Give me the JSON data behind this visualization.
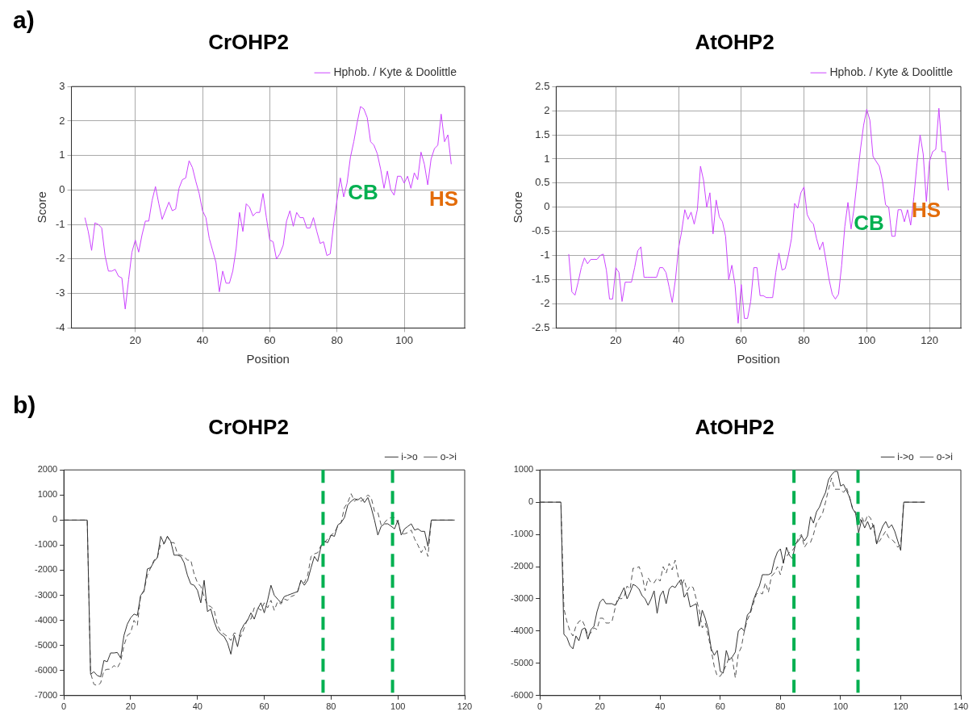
{
  "chart_data": [
    {
      "type": "line",
      "title": "CrOHP2",
      "xlabel": "Position",
      "ylabel": "Score",
      "xlim": [
        1,
        118
      ],
      "xticks": [
        20,
        40,
        60,
        80,
        100
      ],
      "ylim": [
        -4,
        3
      ],
      "yticks": [
        -4,
        -3,
        -2,
        -1,
        0,
        1,
        2,
        3
      ],
      "grid": true,
      "legend": "top right",
      "marker": "none",
      "line_style": "solid",
      "annotations": [
        "a)",
        "CB",
        "HS"
      ],
      "x": [
        5,
        6,
        7,
        8,
        9,
        10,
        11,
        12,
        13,
        14,
        15,
        16,
        17,
        18,
        19,
        20,
        21,
        22,
        23,
        24,
        25,
        26,
        27,
        28,
        29,
        30,
        31,
        32,
        33,
        34,
        35,
        36,
        37,
        38,
        39,
        40,
        41,
        42,
        43,
        44,
        45,
        46,
        47,
        48,
        49,
        50,
        51,
        52,
        53,
        54,
        55,
        56,
        57,
        58,
        59,
        60,
        61,
        62,
        63,
        64,
        65,
        66,
        67,
        68,
        69,
        70,
        71,
        72,
        73,
        74,
        75,
        76,
        77,
        78,
        79,
        80,
        81,
        82,
        83,
        84,
        85,
        86,
        87,
        88,
        89,
        90,
        91,
        92,
        93,
        94,
        95,
        96,
        97,
        98,
        99,
        100,
        101,
        102,
        103,
        104,
        105,
        106,
        107,
        108,
        109,
        110,
        111,
        112,
        113,
        114
      ],
      "series": [
        {
          "name": "Hphob. / Kyte & Doolittle",
          "color": "#cc44ff",
          "values": [
            -0.8,
            -1.2,
            -1.75,
            -0.95,
            -1.0,
            -1.1,
            -1.9,
            -2.35,
            -2.35,
            -2.3,
            -2.5,
            -2.55,
            -3.45,
            -2.6,
            -1.8,
            -1.45,
            -1.8,
            -1.3,
            -0.9,
            -0.9,
            -0.3,
            0.1,
            -0.4,
            -0.85,
            -0.6,
            -0.35,
            -0.6,
            -0.55,
            0.05,
            0.3,
            0.35,
            0.85,
            0.65,
            0.25,
            -0.1,
            -0.6,
            -0.8,
            -1.4,
            -1.75,
            -2.1,
            -2.95,
            -2.35,
            -2.7,
            -2.7,
            -2.35,
            -1.7,
            -0.65,
            -1.2,
            -0.4,
            -0.5,
            -0.75,
            -0.65,
            -0.65,
            -0.1,
            -0.8,
            -1.45,
            -1.5,
            -2.0,
            -1.85,
            -1.6,
            -0.9,
            -0.6,
            -1.05,
            -0.65,
            -0.8,
            -0.8,
            -1.1,
            -1.1,
            -0.8,
            -1.2,
            -1.55,
            -1.5,
            -1.9,
            -1.85,
            -1.0,
            -0.3,
            0.35,
            -0.2,
            0.2,
            0.95,
            1.4,
            1.95,
            2.42,
            2.35,
            2.1,
            1.4,
            1.3,
            1.05,
            0.6,
            0.05,
            0.55,
            0.0,
            -0.15,
            0.4,
            0.4,
            0.2,
            0.4,
            0.05,
            0.5,
            0.3,
            1.1,
            0.75,
            0.15,
            0.9,
            1.2,
            1.3,
            2.2,
            1.4,
            1.6,
            0.75
          ]
        }
      ]
    },
    {
      "type": "line",
      "title": "AtOHP2",
      "xlabel": "Position",
      "ylabel": "Score",
      "xlim": [
        1,
        130
      ],
      "xticks": [
        20,
        40,
        60,
        80,
        100,
        120
      ],
      "ylim": [
        -2.5,
        2.5
      ],
      "yticks": [
        -2.5,
        -2,
        -1.5,
        -1,
        -0.5,
        0,
        0.5,
        1,
        1.5,
        2,
        2.5
      ],
      "grid": true,
      "legend": "top right",
      "marker": "none",
      "line_style": "solid",
      "annotations": [
        "CB",
        "HS"
      ],
      "x": [
        5,
        6,
        7,
        8,
        9,
        10,
        11,
        12,
        13,
        14,
        15,
        16,
        17,
        18,
        19,
        20,
        21,
        22,
        23,
        24,
        25,
        26,
        27,
        28,
        29,
        30,
        31,
        32,
        33,
        34,
        35,
        36,
        37,
        38,
        39,
        40,
        41,
        42,
        43,
        44,
        45,
        46,
        47,
        48,
        49,
        50,
        51,
        52,
        53,
        54,
        55,
        56,
        57,
        58,
        59,
        60,
        61,
        62,
        63,
        64,
        65,
        66,
        67,
        68,
        69,
        70,
        71,
        72,
        73,
        74,
        75,
        76,
        77,
        78,
        79,
        80,
        81,
        82,
        83,
        84,
        85,
        86,
        87,
        88,
        89,
        90,
        91,
        92,
        93,
        94,
        95,
        96,
        97,
        98,
        99,
        100,
        101,
        102,
        103,
        104,
        105,
        106,
        107,
        108,
        109,
        110,
        111,
        112,
        113,
        114,
        115,
        116,
        117,
        118,
        119,
        120,
        121,
        122,
        123,
        124,
        125,
        126
      ],
      "series": [
        {
          "name": "Hphob. / Kyte & Doolittle",
          "color": "#cc44ff",
          "values": [
            -0.97,
            -1.75,
            -1.82,
            -1.55,
            -1.25,
            -1.05,
            -1.17,
            -1.08,
            -1.08,
            -1.08,
            -1.0,
            -0.97,
            -1.3,
            -1.9,
            -1.9,
            -1.25,
            -1.35,
            -1.95,
            -1.55,
            -1.55,
            -1.55,
            -1.25,
            -0.9,
            -0.82,
            -1.45,
            -1.45,
            -1.45,
            -1.45,
            -1.45,
            -1.25,
            -1.25,
            -1.35,
            -1.65,
            -1.97,
            -1.5,
            -0.85,
            -0.5,
            -0.05,
            -0.25,
            -0.1,
            -0.35,
            -0.05,
            0.85,
            0.55,
            0.0,
            0.3,
            -0.55,
            0.15,
            -0.2,
            -0.3,
            -0.6,
            -1.5,
            -1.2,
            -1.6,
            -2.4,
            -1.6,
            -2.3,
            -2.3,
            -1.95,
            -1.25,
            -1.25,
            -1.83,
            -1.83,
            -1.87,
            -1.87,
            -1.87,
            -1.35,
            -0.95,
            -1.3,
            -1.27,
            -1.0,
            -0.65,
            0.08,
            -0.02,
            0.3,
            0.42,
            -0.15,
            -0.28,
            -0.35,
            -0.65,
            -0.88,
            -0.72,
            -1.1,
            -1.5,
            -1.8,
            -1.9,
            -1.8,
            -1.2,
            -0.4,
            0.1,
            -0.45,
            0.0,
            0.6,
            1.2,
            1.7,
            2.03,
            1.8,
            1.05,
            0.95,
            0.85,
            0.55,
            0.05,
            0.0,
            -0.6,
            -0.6,
            -0.05,
            -0.05,
            -0.3,
            -0.05,
            -0.37,
            0.2,
            0.9,
            1.5,
            1.1,
            0.12,
            0.95,
            1.15,
            1.2,
            2.05,
            1.15,
            1.15,
            0.35
          ]
        }
      ]
    },
    {
      "type": "line",
      "title": "CrOHP2",
      "xlim": [
        0,
        120
      ],
      "xticks": [
        0,
        20,
        40,
        60,
        80,
        100,
        120
      ],
      "ylim": [
        -7000,
        2000
      ],
      "yticks": [
        -7000,
        -6000,
        -5000,
        -4000,
        -3000,
        -2000,
        -1000,
        0,
        1000,
        2000
      ],
      "legend": "top right",
      "marker": "none",
      "annotations": [
        "b)"
      ],
      "ref_lines": [
        {
          "axis": "x",
          "value": 77.6,
          "color": "#00b050",
          "line_style": "dashed"
        },
        {
          "axis": "x",
          "value": 98.4,
          "color": "#00b050",
          "line_style": "dashed"
        }
      ],
      "x": [
        0,
        7,
        8,
        9,
        10,
        11,
        12,
        13,
        14,
        15,
        16,
        17,
        18,
        19,
        20,
        21,
        22,
        23,
        24,
        25,
        26,
        27,
        28,
        29,
        30,
        31,
        32,
        33,
        34,
        35,
        36,
        37,
        38,
        39,
        40,
        41,
        42,
        43,
        44,
        45,
        46,
        47,
        48,
        49,
        50,
        51,
        52,
        53,
        54,
        55,
        56,
        57,
        58,
        59,
        60,
        61,
        62,
        63,
        64,
        65,
        66,
        67,
        68,
        69,
        70,
        71,
        72,
        73,
        74,
        75,
        76,
        77,
        78,
        79,
        80,
        81,
        82,
        83,
        84,
        85,
        86,
        87,
        88,
        89,
        90,
        91,
        92,
        93,
        94,
        95,
        96,
        97,
        98,
        99,
        100,
        101,
        102,
        103,
        104,
        105,
        106,
        107,
        108,
        109,
        110,
        117
      ],
      "series": [
        {
          "name": "i->o",
          "color": "#333333",
          "line_style": "solid",
          "values": [
            0,
            0,
            -6150,
            -6050,
            -6200,
            -6250,
            -5600,
            -5650,
            -5300,
            -5300,
            -5280,
            -5500,
            -4600,
            -4150,
            -3900,
            -3750,
            -3800,
            -3000,
            -2850,
            -1950,
            -1900,
            -1650,
            -1500,
            -650,
            -950,
            -650,
            -850,
            -1400,
            -1400,
            -1450,
            -1700,
            -2200,
            -2550,
            -2600,
            -2800,
            -3300,
            -2400,
            -3650,
            -3550,
            -4050,
            -4400,
            -4550,
            -4650,
            -4900,
            -5350,
            -4600,
            -5050,
            -4400,
            -4150,
            -4000,
            -3700,
            -3950,
            -3550,
            -3300,
            -3700,
            -3200,
            -2600,
            -3000,
            -3150,
            -3300,
            -3050,
            -3000,
            -2950,
            -2900,
            -2850,
            -2400,
            -2600,
            -2400,
            -1900,
            -1450,
            -1650,
            -1050,
            -850,
            -900,
            -600,
            -650,
            -200,
            -100,
            100,
            600,
            750,
            850,
            800,
            900,
            700,
            900,
            500,
            0,
            -600,
            -250,
            -150,
            -150,
            -250,
            -350,
            0,
            -600,
            -350,
            -250,
            -150,
            -400,
            -350,
            -450,
            -450,
            -1050,
            0,
            0
          ]
        },
        {
          "name": "o->i",
          "color": "#555555",
          "line_style": "dashed",
          "values": [
            0,
            0,
            -6100,
            -6550,
            -6600,
            -6500,
            -6000,
            -5950,
            -5950,
            -5800,
            -5900,
            -5650,
            -5000,
            -4600,
            -4500,
            -4000,
            -4200,
            -3000,
            -2800,
            -2200,
            -1900,
            -1600,
            -1500,
            -950,
            -950,
            -650,
            -900,
            -900,
            -1350,
            -1400,
            -1450,
            -1600,
            -1600,
            -2150,
            -2500,
            -2650,
            -3050,
            -3400,
            -3450,
            -3600,
            -4200,
            -4450,
            -4550,
            -4650,
            -4800,
            -4500,
            -4550,
            -4650,
            -4300,
            -3950,
            -3950,
            -3500,
            -3500,
            -3600,
            -3300,
            -3500,
            -3200,
            -3600,
            -3250,
            -3350,
            -3150,
            -3200,
            -3050,
            -3000,
            -2850,
            -2400,
            -2500,
            -2200,
            -1450,
            -1350,
            -1300,
            -1000,
            -900,
            -750,
            -600,
            -500,
            -250,
            -100,
            500,
            700,
            1050,
            750,
            850,
            750,
            850,
            1000,
            900,
            350,
            300,
            -200,
            -100,
            50,
            100,
            100,
            -100,
            -550,
            -550,
            -500,
            -400,
            -750,
            -1000,
            -1300,
            -1050,
            -1450,
            0,
            0
          ]
        }
      ]
    },
    {
      "type": "line",
      "title": "AtOHP2",
      "xlim": [
        0,
        140
      ],
      "xticks": [
        0,
        20,
        40,
        60,
        80,
        100,
        120,
        140
      ],
      "ylim": [
        -6000,
        1000
      ],
      "yticks": [
        -6000,
        -5000,
        -4000,
        -3000,
        -2000,
        -1000,
        0,
        1000
      ],
      "legend": "top right",
      "marker": "none",
      "ref_lines": [
        {
          "axis": "x",
          "value": 84.5,
          "color": "#00b050",
          "line_style": "dashed"
        },
        {
          "axis": "x",
          "value": 105.8,
          "color": "#00b050",
          "line_style": "dashed"
        }
      ],
      "x": [
        0,
        7,
        8,
        9,
        10,
        11,
        12,
        13,
        14,
        15,
        16,
        17,
        18,
        19,
        20,
        21,
        22,
        23,
        24,
        25,
        26,
        27,
        28,
        29,
        30,
        31,
        32,
        33,
        34,
        35,
        36,
        37,
        38,
        39,
        40,
        41,
        42,
        43,
        44,
        45,
        46,
        47,
        48,
        49,
        50,
        51,
        52,
        53,
        54,
        55,
        56,
        57,
        58,
        59,
        60,
        61,
        62,
        63,
        64,
        65,
        66,
        67,
        68,
        69,
        70,
        71,
        72,
        73,
        74,
        75,
        76,
        77,
        78,
        79,
        80,
        81,
        82,
        83,
        84,
        85,
        86,
        87,
        88,
        89,
        90,
        91,
        92,
        93,
        94,
        95,
        96,
        97,
        98,
        99,
        100,
        101,
        102,
        103,
        104,
        105,
        106,
        107,
        108,
        109,
        110,
        111,
        112,
        113,
        114,
        115,
        116,
        117,
        118,
        119,
        120,
        121,
        128
      ],
      "series": [
        {
          "name": "i->o",
          "color": "#333333",
          "line_style": "solid",
          "values": [
            0,
            0,
            -4100,
            -4200,
            -4450,
            -4550,
            -4150,
            -4300,
            -3950,
            -3900,
            -4250,
            -3950,
            -3850,
            -3400,
            -3100,
            -3000,
            -3150,
            -3150,
            -3150,
            -3200,
            -3050,
            -2850,
            -2650,
            -3000,
            -2800,
            -2550,
            -2600,
            -2700,
            -2900,
            -3000,
            -3200,
            -3000,
            -2750,
            -3450,
            -2900,
            -2750,
            -3150,
            -2700,
            -2600,
            -2650,
            -2500,
            -2400,
            -2950,
            -2800,
            -3250,
            -3200,
            -3150,
            -3850,
            -3350,
            -3600,
            -3950,
            -4550,
            -4750,
            -4600,
            -5250,
            -5300,
            -4600,
            -4900,
            -4800,
            -4650,
            -4000,
            -3900,
            -4000,
            -3500,
            -3400,
            -3050,
            -2800,
            -2600,
            -2250,
            -2250,
            -2250,
            -2200,
            -1800,
            -1550,
            -1450,
            -1900,
            -1400,
            -1650,
            -1750,
            -1300,
            -1200,
            -1050,
            -1200,
            -1050,
            -450,
            -650,
            -300,
            -150,
            100,
            300,
            700,
            850,
            950,
            950,
            500,
            550,
            350,
            150,
            -200,
            -350,
            -950,
            -550,
            -800,
            -600,
            -850,
            -700,
            -1300,
            -1000,
            -750,
            -600,
            -800,
            -700,
            -900,
            -1200,
            -1500,
            0,
            0
          ]
        },
        {
          "name": "o->i",
          "color": "#555555",
          "line_style": "dashed",
          "values": [
            0,
            0,
            -3300,
            -3700,
            -4000,
            -4150,
            -3850,
            -3700,
            -3650,
            -3850,
            -4150,
            -4050,
            -3900,
            -3950,
            -3600,
            -3600,
            -3750,
            -3750,
            -3700,
            -3300,
            -2950,
            -3000,
            -2950,
            -2600,
            -2700,
            -2050,
            -2050,
            -2000,
            -2250,
            -2750,
            -2350,
            -2500,
            -2500,
            -2350,
            -2450,
            -2000,
            -2200,
            -1900,
            -2100,
            -1800,
            -2300,
            -2600,
            -2400,
            -2750,
            -2600,
            -2650,
            -3000,
            -3350,
            -3900,
            -3750,
            -4150,
            -4600,
            -5100,
            -5400,
            -5400,
            -5250,
            -5050,
            -4800,
            -4850,
            -5450,
            -4700,
            -4500,
            -4000,
            -3650,
            -3450,
            -3150,
            -2850,
            -2800,
            -2850,
            -2500,
            -2800,
            -2300,
            -2200,
            -2000,
            -2250,
            -1800,
            -1700,
            -1550,
            -1500,
            -1350,
            -1100,
            -1000,
            -1400,
            -1250,
            -1250,
            -1000,
            -650,
            -500,
            -350,
            0,
            400,
            750,
            400,
            400,
            400,
            300,
            450,
            150,
            -200,
            -300,
            -700,
            -450,
            -650,
            -400,
            -500,
            -800,
            -1300,
            -1200,
            -1050,
            -900,
            -1100,
            -1150,
            -1250,
            -1400,
            -1300,
            0,
            0
          ]
        }
      ]
    }
  ]
}
